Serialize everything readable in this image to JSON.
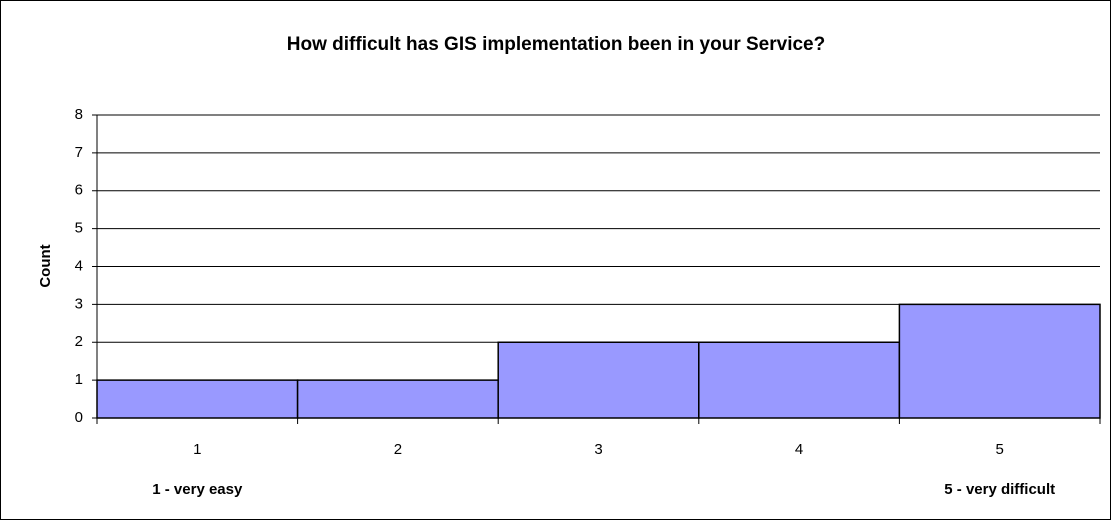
{
  "chart_data": {
    "type": "bar",
    "title": "How difficult has GIS implementation been in your Service?",
    "y_label": "Count",
    "categories": [
      "1",
      "2",
      "3",
      "4",
      "5"
    ],
    "values": [
      1,
      1,
      2,
      2,
      3
    ],
    "color": "#9999ff",
    "ylim": [
      0,
      8
    ],
    "yticks": [
      0,
      1,
      2,
      3,
      4,
      5,
      6,
      7,
      8
    ],
    "grid": true,
    "annotations": [
      "1 - very easy",
      "5 - very difficult"
    ]
  }
}
